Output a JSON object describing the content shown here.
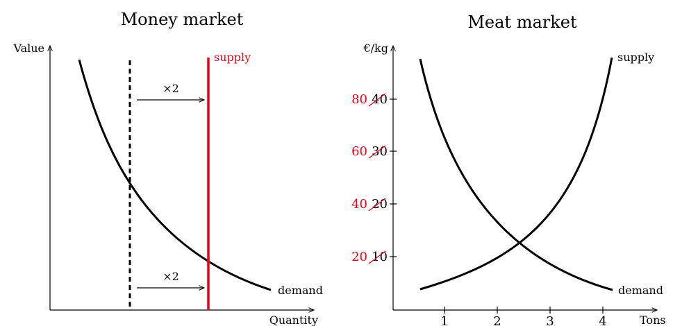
{
  "colors": {
    "ink": "#000000",
    "accent": "#e8001c"
  },
  "money_market": {
    "title": "Money market",
    "y_label": "Value",
    "x_label": "Quantity",
    "supply_label": "supply",
    "demand_label": "demand",
    "arrow_top_label": "×2",
    "arrow_bottom_label": "×2"
  },
  "meat_market": {
    "title": "Meat market",
    "y_label": "€/kg",
    "x_label": "Tons",
    "supply_label": "supply",
    "demand_label": "demand",
    "x_ticks": [
      "1",
      "2",
      "3",
      "4"
    ],
    "y_ticks_old": [
      "10",
      "20",
      "30",
      "40"
    ],
    "y_ticks_new": [
      "20",
      "40",
      "60",
      "80"
    ]
  }
}
